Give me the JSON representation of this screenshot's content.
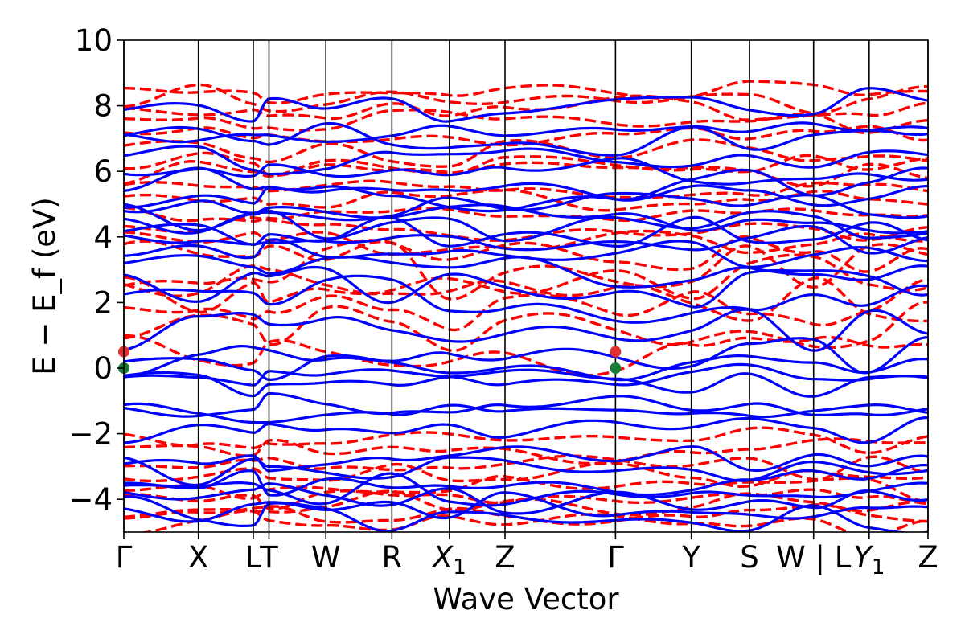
{
  "chart_data": {
    "type": "line",
    "title": "",
    "xlabel": "Wave Vector",
    "ylabel": "E − E_f (eV)",
    "ylabel_parts": {
      "main1": "E",
      "sub1": "f",
      "pre": "E − E",
      "unit": " (eV)"
    },
    "ylim": [
      -5,
      10
    ],
    "y_ticks": [
      -4,
      -2,
      0,
      2,
      4,
      6,
      8,
      10
    ],
    "y_tick_labels": [
      "−4",
      "−2",
      "0",
      "2",
      "4",
      "6",
      "8",
      "10"
    ],
    "x_range": [
      0,
      12.3
    ],
    "kpoints": [
      {
        "x": 0.0,
        "label": "Γ"
      },
      {
        "x": 1.14,
        "label": "X"
      },
      {
        "x": 1.98,
        "label": "L"
      },
      {
        "x": 2.22,
        "label": "T"
      },
      {
        "x": 3.09,
        "label": "W"
      },
      {
        "x": 4.1,
        "label": "R"
      },
      {
        "x": 4.98,
        "label": "X",
        "sub": "1"
      },
      {
        "x": 5.83,
        "label": "Z"
      },
      {
        "x": 7.52,
        "label": "Γ"
      },
      {
        "x": 8.68,
        "label": "Y"
      },
      {
        "x": 9.57,
        "label": "S"
      },
      {
        "x": 10.55,
        "label": "W | L"
      },
      {
        "x": 11.4,
        "label": "Y",
        "sub": "1"
      },
      {
        "x": 12.3,
        "label": "Z"
      }
    ],
    "grid": false,
    "legend": "none",
    "series_styles": [
      {
        "style": "solid",
        "color": "#0000ff"
      },
      {
        "style": "dashed",
        "color": "#ff0000"
      }
    ],
    "markers": [
      {
        "x": 0.0,
        "y": 0.0,
        "color": "#1a7a3a"
      },
      {
        "x": 0.0,
        "y": 0.5,
        "color": "#e03030"
      },
      {
        "x": 7.52,
        "y": 0.0,
        "color": "#1a7a3a"
      },
      {
        "x": 7.52,
        "y": 0.5,
        "color": "#e03030"
      }
    ],
    "blue_bands_gamma_values": [
      -4.6,
      -4.3,
      -4.0,
      -3.7,
      -3.4,
      -3.1,
      -2.8,
      -1.9,
      -1.3,
      -1.2,
      -0.5,
      -0.3,
      0.0,
      0.5,
      1.2,
      2.1,
      2.5,
      3.0,
      3.6,
      3.9,
      4.2,
      4.4,
      4.6,
      5.0,
      5.3,
      5.6,
      6.0,
      6.3,
      7.0,
      7.3,
      8.0
    ],
    "red_bands_gamma_values": [
      -4.8,
      -4.5,
      -4.2,
      -3.9,
      -3.6,
      -3.3,
      -3.0,
      -2.5,
      -2.2,
      0.5,
      1.4,
      1.8,
      2.2,
      2.6,
      3.0,
      3.4,
      3.8,
      4.3,
      4.7,
      5.1,
      5.5,
      5.9,
      6.2,
      6.6,
      7.2,
      7.6,
      7.9,
      8.2,
      8.4
    ]
  }
}
